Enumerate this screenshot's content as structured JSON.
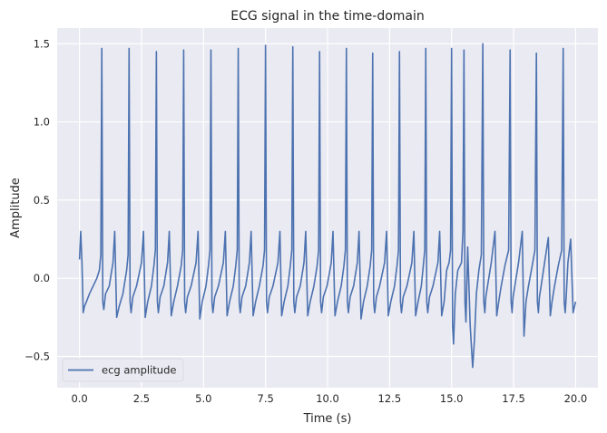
{
  "chart_data": {
    "type": "line",
    "title": "ECG signal in the time-domain",
    "xlabel": "Time (s)",
    "ylabel": "Amplitude",
    "xlim": [
      -0.9,
      20.9
    ],
    "ylim": [
      -0.7,
      1.6
    ],
    "xticks": [
      0.0,
      2.5,
      5.0,
      7.5,
      10.0,
      12.5,
      15.0,
      17.5,
      20.0
    ],
    "xtick_labels": [
      "0.0",
      "2.5",
      "5.0",
      "7.5",
      "10.0",
      "12.5",
      "15.0",
      "17.5",
      "20.0"
    ],
    "yticks": [
      -0.5,
      0.0,
      0.5,
      1.0,
      1.5
    ],
    "ytick_labels": [
      "−0.5",
      "0.0",
      "0.5",
      "1.0",
      "1.5"
    ],
    "grid": true,
    "background": "#eaeaf2",
    "legend": {
      "position": "lower-left",
      "entries": [
        "ecg amplitude"
      ]
    },
    "series": [
      {
        "name": "ecg amplitude",
        "color": "#4c72b0",
        "x": [
          0.0,
          0.05,
          0.1,
          0.15,
          0.2,
          0.28,
          0.4,
          0.55,
          0.7,
          0.8,
          0.86,
          0.9,
          0.94,
          0.98,
          1.05,
          1.2,
          1.35,
          1.42,
          1.5,
          1.6,
          1.75,
          1.9,
          1.96,
          2.0,
          2.04,
          2.08,
          2.15,
          2.3,
          2.5,
          2.58,
          2.65,
          2.75,
          2.9,
          3.0,
          3.06,
          3.1,
          3.14,
          3.18,
          3.25,
          3.4,
          3.55,
          3.62,
          3.7,
          3.8,
          3.95,
          4.1,
          4.16,
          4.2,
          4.24,
          4.28,
          4.35,
          4.5,
          4.7,
          4.78,
          4.85,
          4.95,
          5.1,
          5.2,
          5.26,
          5.3,
          5.34,
          5.38,
          5.45,
          5.6,
          5.8,
          5.88,
          5.95,
          6.05,
          6.2,
          6.3,
          6.36,
          6.4,
          6.44,
          6.48,
          6.55,
          6.7,
          6.85,
          6.92,
          7.0,
          7.1,
          7.25,
          7.4,
          7.46,
          7.5,
          7.54,
          7.58,
          7.65,
          7.8,
          8.0,
          8.08,
          8.15,
          8.25,
          8.4,
          8.5,
          8.56,
          8.6,
          8.64,
          8.68,
          8.75,
          8.9,
          9.05,
          9.12,
          9.2,
          9.3,
          9.45,
          9.58,
          9.64,
          9.68,
          9.72,
          9.76,
          9.83,
          9.98,
          10.15,
          10.22,
          10.3,
          10.4,
          10.55,
          10.66,
          10.72,
          10.76,
          10.8,
          10.84,
          10.91,
          11.05,
          11.2,
          11.27,
          11.35,
          11.45,
          11.6,
          11.72,
          11.78,
          11.82,
          11.86,
          11.9,
          11.97,
          12.1,
          12.3,
          12.38,
          12.45,
          12.55,
          12.7,
          12.8,
          12.86,
          12.9,
          12.94,
          12.98,
          13.05,
          13.2,
          13.4,
          13.48,
          13.55,
          13.65,
          13.78,
          13.86,
          13.92,
          13.96,
          14.0,
          14.04,
          14.11,
          14.25,
          14.45,
          14.52,
          14.6,
          14.7,
          14.8,
          14.9,
          14.96,
          15.0,
          15.04,
          15.08,
          15.15,
          15.25,
          15.4,
          15.46,
          15.5,
          15.54,
          15.58,
          15.65,
          15.75,
          15.85,
          15.92,
          16.0,
          16.1,
          16.2,
          16.26,
          16.3,
          16.34,
          16.38,
          16.45,
          16.6,
          16.75,
          16.82,
          16.9,
          17.0,
          17.15,
          17.3,
          17.36,
          17.4,
          17.44,
          17.48,
          17.55,
          17.7,
          17.85,
          17.92,
          18.0,
          18.1,
          18.25,
          18.36,
          18.42,
          18.46,
          18.5,
          18.54,
          18.61,
          18.75,
          18.9,
          18.98,
          19.05,
          19.15,
          19.3,
          19.44,
          19.5,
          19.54,
          19.58,
          19.62,
          19.69,
          19.8,
          19.9,
          20.0
        ],
        "y": [
          0.12,
          0.3,
          0.1,
          -0.22,
          -0.18,
          -0.15,
          -0.1,
          -0.05,
          0.0,
          0.05,
          0.15,
          1.47,
          -0.15,
          -0.2,
          -0.1,
          -0.05,
          0.1,
          0.3,
          -0.25,
          -0.18,
          -0.1,
          0.05,
          0.15,
          1.47,
          -0.15,
          -0.22,
          -0.12,
          -0.05,
          0.1,
          0.3,
          -0.25,
          -0.15,
          -0.05,
          0.08,
          0.18,
          1.45,
          -0.15,
          -0.22,
          -0.12,
          -0.05,
          0.1,
          0.3,
          -0.24,
          -0.15,
          -0.05,
          0.08,
          0.18,
          1.46,
          -0.15,
          -0.22,
          -0.12,
          -0.05,
          0.1,
          0.3,
          -0.26,
          -0.15,
          -0.05,
          0.08,
          0.18,
          1.46,
          -0.15,
          -0.22,
          -0.12,
          -0.05,
          0.1,
          0.3,
          -0.24,
          -0.15,
          -0.05,
          0.08,
          0.18,
          1.47,
          -0.15,
          -0.22,
          -0.12,
          -0.05,
          0.1,
          0.3,
          -0.24,
          -0.15,
          -0.05,
          0.08,
          0.18,
          1.49,
          -0.15,
          -0.22,
          -0.12,
          -0.05,
          0.1,
          0.3,
          -0.24,
          -0.15,
          -0.05,
          0.08,
          0.18,
          1.48,
          -0.15,
          -0.22,
          -0.12,
          -0.05,
          0.1,
          0.3,
          -0.24,
          -0.15,
          -0.05,
          0.08,
          0.18,
          1.45,
          -0.15,
          -0.22,
          -0.12,
          -0.05,
          0.1,
          0.3,
          -0.24,
          -0.15,
          -0.05,
          0.08,
          0.18,
          1.47,
          -0.15,
          -0.22,
          -0.12,
          -0.05,
          0.1,
          0.3,
          -0.26,
          -0.15,
          -0.05,
          0.08,
          0.18,
          1.44,
          -0.15,
          -0.22,
          -0.12,
          -0.05,
          0.1,
          0.3,
          -0.24,
          -0.15,
          -0.05,
          0.08,
          0.18,
          1.45,
          -0.15,
          -0.22,
          -0.12,
          -0.05,
          0.1,
          0.3,
          -0.24,
          -0.15,
          -0.05,
          0.08,
          0.18,
          1.47,
          -0.15,
          -0.22,
          -0.12,
          -0.05,
          0.1,
          0.3,
          -0.24,
          -0.15,
          0.05,
          0.1,
          0.18,
          1.47,
          -0.3,
          -0.42,
          -0.1,
          0.05,
          0.1,
          0.3,
          1.46,
          -0.15,
          -0.28,
          0.2,
          -0.3,
          -0.57,
          -0.4,
          -0.1,
          0.05,
          0.15,
          1.5,
          -0.15,
          -0.22,
          -0.12,
          -0.05,
          0.1,
          0.3,
          -0.24,
          -0.15,
          -0.05,
          0.08,
          0.18,
          1.46,
          -0.15,
          -0.22,
          -0.12,
          -0.05,
          0.1,
          0.3,
          -0.37,
          -0.15,
          -0.05,
          0.08,
          0.18,
          1.44,
          -0.15,
          -0.22,
          -0.12,
          -0.05,
          0.1,
          0.26,
          -0.24,
          -0.15,
          -0.05,
          0.08,
          0.18,
          1.47,
          -0.15,
          -0.22,
          -0.12,
          0.1,
          0.25,
          -0.22,
          -0.15
        ]
      }
    ]
  }
}
